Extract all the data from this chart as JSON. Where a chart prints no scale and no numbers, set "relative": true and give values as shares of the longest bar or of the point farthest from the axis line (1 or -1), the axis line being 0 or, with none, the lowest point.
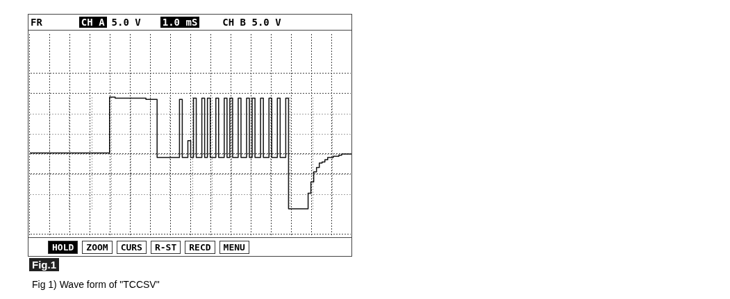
{
  "chart_data": {
    "type": "step",
    "relative": true,
    "grid": true,
    "color": "#111111",
    "line_style": "solid",
    "categories": [
      null,
      null,
      null,
      null,
      null,
      null,
      null,
      null,
      null,
      null,
      null,
      null,
      null,
      null,
      null,
      null,
      null,
      null,
      null,
      null,
      null,
      null,
      null,
      null,
      null,
      null,
      null,
      null,
      null,
      null,
      null,
      null,
      null,
      null,
      null,
      null,
      null,
      null,
      null,
      null,
      null,
      null,
      null,
      null,
      null,
      null,
      null,
      null,
      null,
      null,
      null,
      null,
      null,
      null,
      null,
      null,
      null,
      null,
      null,
      null,
      null,
      null,
      null,
      null,
      null,
      null,
      null,
      null,
      null,
      null,
      null,
      null,
      null,
      null,
      null,
      null,
      null,
      null,
      null,
      null,
      null,
      null,
      null,
      null,
      null,
      null,
      null,
      null,
      null,
      null,
      null,
      null,
      null,
      null,
      null,
      null,
      null,
      null,
      null,
      null,
      null,
      null,
      null,
      null,
      null,
      null,
      null,
      null,
      null,
      null,
      null,
      null,
      null,
      null,
      null,
      null
    ],
    "values": [
      0.5,
      0.5,
      0.5,
      0.5,
      0.5,
      0.5,
      0.5,
      0.5,
      0.5,
      0.5,
      0.5,
      0.5,
      0.5,
      0.5,
      0.5,
      0.5,
      0.5,
      0.5,
      0.5,
      0.5,
      0.5,
      0.5,
      0.5,
      0.5,
      0.5,
      0.5,
      0.5,
      0.5,
      0.5,
      1,
      1,
      0.99,
      0.99,
      0.99,
      0.99,
      0.99,
      0.99,
      0.99,
      0.99,
      0.99,
      0.99,
      0.99,
      0.98,
      0.98,
      0.98,
      0.98,
      0.46,
      0.46,
      0.46,
      0.46,
      0.46,
      0.46,
      0.46,
      0.46,
      0.98,
      0.46,
      0.46,
      0.61,
      0.46,
      0.99,
      0.46,
      0.46,
      0.99,
      0.46,
      0.99,
      0.46,
      0.46,
      0.99,
      0.46,
      0.46,
      0.99,
      0.46,
      0.99,
      0.46,
      0.46,
      0.99,
      0.46,
      0.46,
      0.99,
      0.46,
      0.99,
      0.46,
      0.46,
      0.99,
      0.46,
      0.46,
      0.99,
      0.46,
      0.46,
      0.99,
      0.46,
      0.46,
      0.99,
      0,
      0,
      0,
      0,
      0,
      0,
      0,
      0.14,
      0.24,
      0.33,
      0.37,
      0.41,
      0.42,
      0.44,
      0.46,
      0.46,
      0.47,
      0.47,
      0.48,
      0.49,
      0.49,
      0.49,
      0.49
    ],
    "annotations": [
      "FR",
      "CH A",
      "5.0 V",
      "1.0 mS",
      "CH B 5.0 V",
      "HOLD",
      "ZOOM",
      "CURS",
      "R-ST",
      "RECD",
      "MENU",
      "Fig.1",
      "Fig 1) Wave form of \"TCCSV\""
    ]
  }
}
